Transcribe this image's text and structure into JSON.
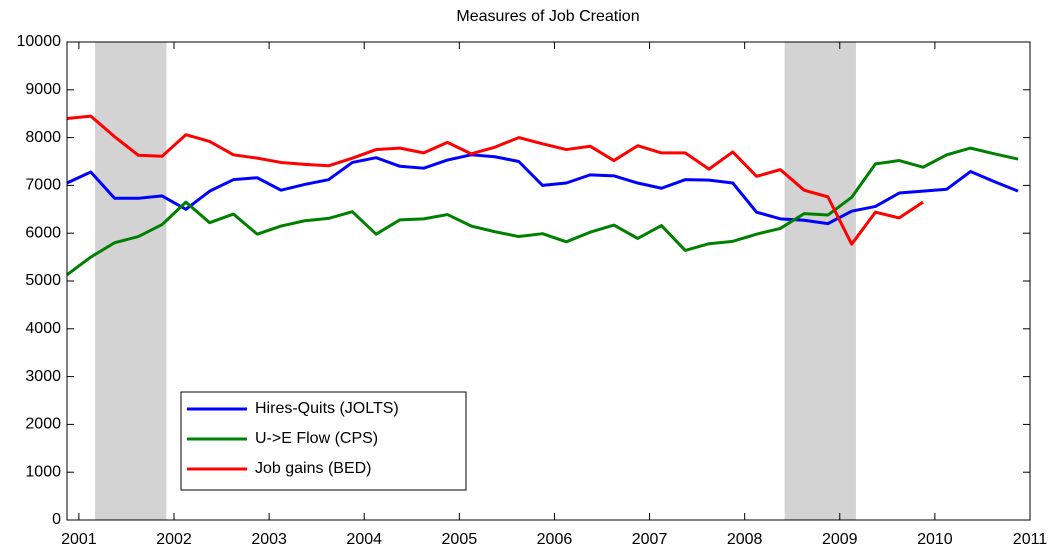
{
  "chart_data": {
    "type": "line",
    "title": "Measures of Job Creation",
    "x": [
      2000.875,
      2001.125,
      2001.375,
      2001.625,
      2001.875,
      2002.125,
      2002.375,
      2002.625,
      2002.875,
      2003.125,
      2003.375,
      2003.625,
      2003.875,
      2004.125,
      2004.375,
      2004.625,
      2004.875,
      2005.125,
      2005.375,
      2005.625,
      2005.875,
      2006.125,
      2006.375,
      2006.625,
      2006.875,
      2007.125,
      2007.375,
      2007.625,
      2007.875,
      2008.125,
      2008.375,
      2008.625,
      2008.875,
      2009.125,
      2009.375,
      2009.625,
      2009.875,
      2010.125,
      2010.375,
      2010.625,
      2010.875
    ],
    "series": [
      {
        "name": "Hires-Quits (JOLTS)",
        "color": "#0000ff",
        "values": [
          7050,
          7280,
          6730,
          6730,
          6780,
          6500,
          6880,
          7120,
          7160,
          6900,
          7020,
          7120,
          7480,
          7580,
          7400,
          7360,
          7530,
          7640,
          7600,
          7500,
          7000,
          7050,
          7220,
          7200,
          7050,
          6940,
          7120,
          7110,
          7050,
          6440,
          6300,
          6270,
          6200,
          6460,
          6560,
          6840,
          6880,
          6920,
          7290,
          7080,
          6880
        ]
      },
      {
        "name": "U->E Flow (CPS)",
        "color": "#008000",
        "values": [
          5130,
          5500,
          5800,
          5930,
          6180,
          6650,
          6220,
          6400,
          5980,
          6150,
          6260,
          6310,
          6450,
          5980,
          6280,
          6300,
          6390,
          6150,
          6030,
          5930,
          5990,
          5820,
          6020,
          6170,
          5890,
          6160,
          5640,
          5780,
          5830,
          5980,
          6100,
          6410,
          6380,
          6750,
          7450,
          7520,
          7380,
          7640,
          7780,
          7660,
          7550
        ]
      },
      {
        "name": "Job gains (BED)",
        "color": "#ff0000",
        "values": [
          8400,
          8450,
          8020,
          7630,
          7610,
          8060,
          7920,
          7640,
          7570,
          7480,
          7440,
          7410,
          7570,
          7750,
          7780,
          7680,
          7900,
          7660,
          7800,
          8000,
          7870,
          7750,
          7820,
          7520,
          7830,
          7680,
          7680,
          7340,
          7700,
          7190,
          7330,
          6900,
          6760,
          5770,
          6440,
          6320,
          6650,
          null,
          null,
          null,
          null
        ]
      }
    ],
    "shaded_regions": [
      [
        2001.17,
        2001.92
      ],
      [
        2008.42,
        2009.17
      ]
    ],
    "xlim": [
      2000.875,
      2011
    ],
    "xticks": [
      2001,
      2002,
      2003,
      2004,
      2005,
      2006,
      2007,
      2008,
      2009,
      2010,
      2011
    ],
    "ylim": [
      0,
      10000
    ],
    "yticks": [
      0,
      1000,
      2000,
      3000,
      4000,
      5000,
      6000,
      7000,
      8000,
      9000,
      10000
    ],
    "grid": false,
    "legend": "lower left"
  }
}
